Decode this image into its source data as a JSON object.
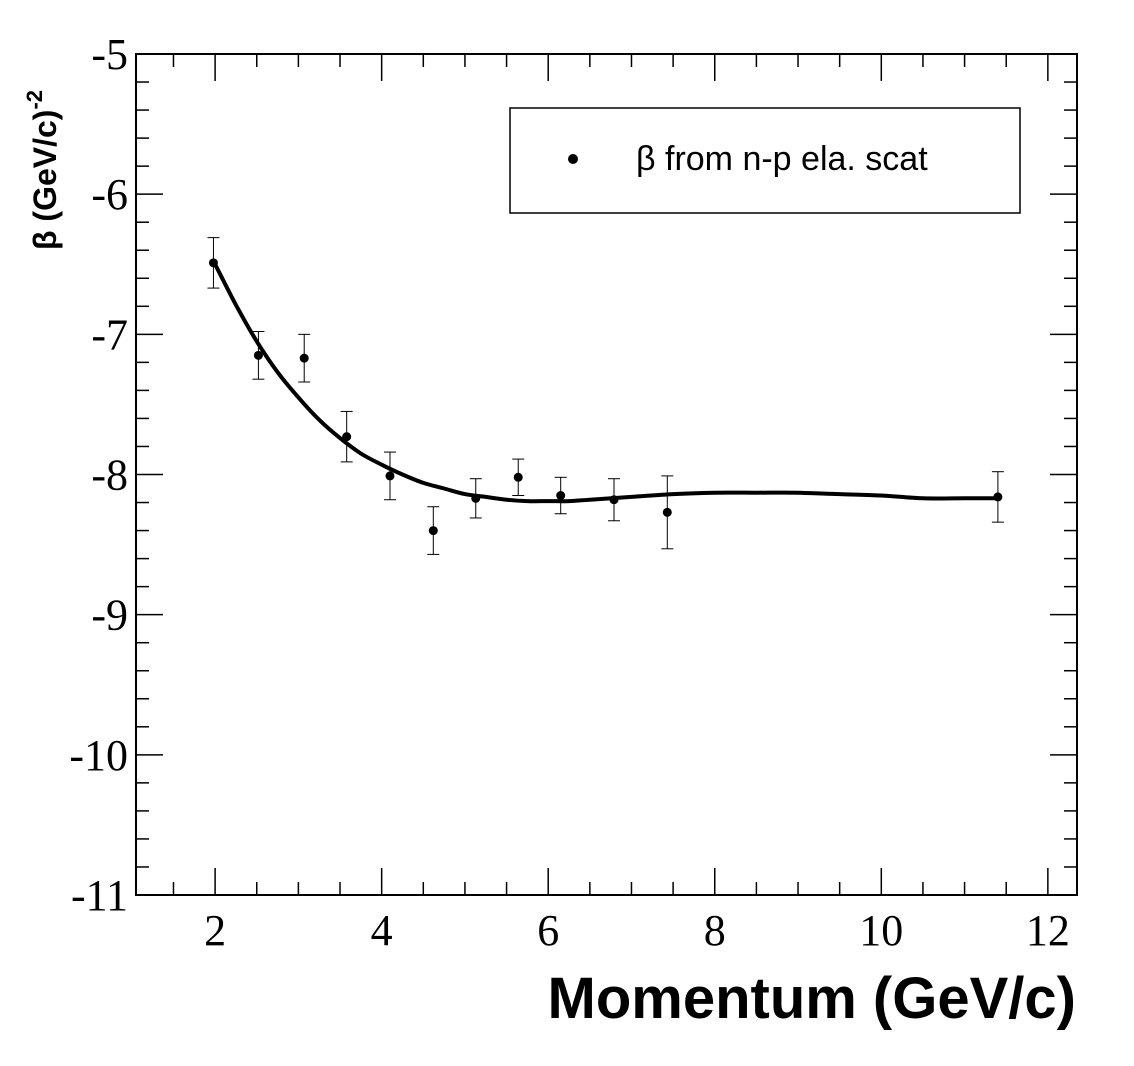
{
  "chart_data": {
    "type": "scatter",
    "xlabel": "Momentum (GeV/c)",
    "ylabel": {
      "prefix": "β (GeV/c)",
      "superscript": "-2"
    },
    "xlim": [
      1.05,
      12.35
    ],
    "ylim": [
      -11,
      -5
    ],
    "x_major_ticks": [
      2,
      4,
      6,
      8,
      10,
      12
    ],
    "x_tick_labels": [
      "2",
      "4",
      "6",
      "8",
      "10",
      "12"
    ],
    "y_major_ticks": [
      -11,
      -10,
      -9,
      -8,
      -7,
      -6,
      -5
    ],
    "y_tick_labels": [
      "-11",
      "-10",
      "-9",
      "-8",
      "-7",
      "-6",
      "-5"
    ],
    "grid": false,
    "legend": {
      "placement": "top-right",
      "entries": [
        "β from n-p ela. scat"
      ]
    },
    "series": [
      {
        "name": "β from n-p ela. scat",
        "kind": "points-with-error-bars",
        "x": [
          1.98,
          2.52,
          3.07,
          3.58,
          4.1,
          4.62,
          5.13,
          5.64,
          6.15,
          6.79,
          7.43,
          11.4
        ],
        "y": [
          -6.49,
          -7.15,
          -7.17,
          -7.73,
          -8.01,
          -8.4,
          -8.17,
          -8.02,
          -8.15,
          -8.18,
          -8.27,
          -8.16
        ],
        "yerr": [
          0.18,
          0.17,
          0.17,
          0.18,
          0.17,
          0.17,
          0.14,
          0.13,
          0.13,
          0.15,
          0.26,
          0.18
        ]
      },
      {
        "kind": "fit-curve",
        "x": [
          2.0,
          2.25,
          2.5,
          2.75,
          3.0,
          3.25,
          3.5,
          3.75,
          4.0,
          4.25,
          4.5,
          4.75,
          5.0,
          5.25,
          5.5,
          5.75,
          6.0,
          6.25,
          6.5,
          7.0,
          7.5,
          8.0,
          8.5,
          9.0,
          9.5,
          10.0,
          10.5,
          11.0,
          11.4
        ],
        "y": [
          -6.5,
          -6.79,
          -7.05,
          -7.27,
          -7.45,
          -7.61,
          -7.74,
          -7.85,
          -7.93,
          -8.0,
          -8.06,
          -8.1,
          -8.14,
          -8.16,
          -8.18,
          -8.19,
          -8.19,
          -8.19,
          -8.18,
          -8.16,
          -8.14,
          -8.13,
          -8.13,
          -8.13,
          -8.14,
          -8.15,
          -8.17,
          -8.17,
          -8.17
        ]
      }
    ]
  }
}
